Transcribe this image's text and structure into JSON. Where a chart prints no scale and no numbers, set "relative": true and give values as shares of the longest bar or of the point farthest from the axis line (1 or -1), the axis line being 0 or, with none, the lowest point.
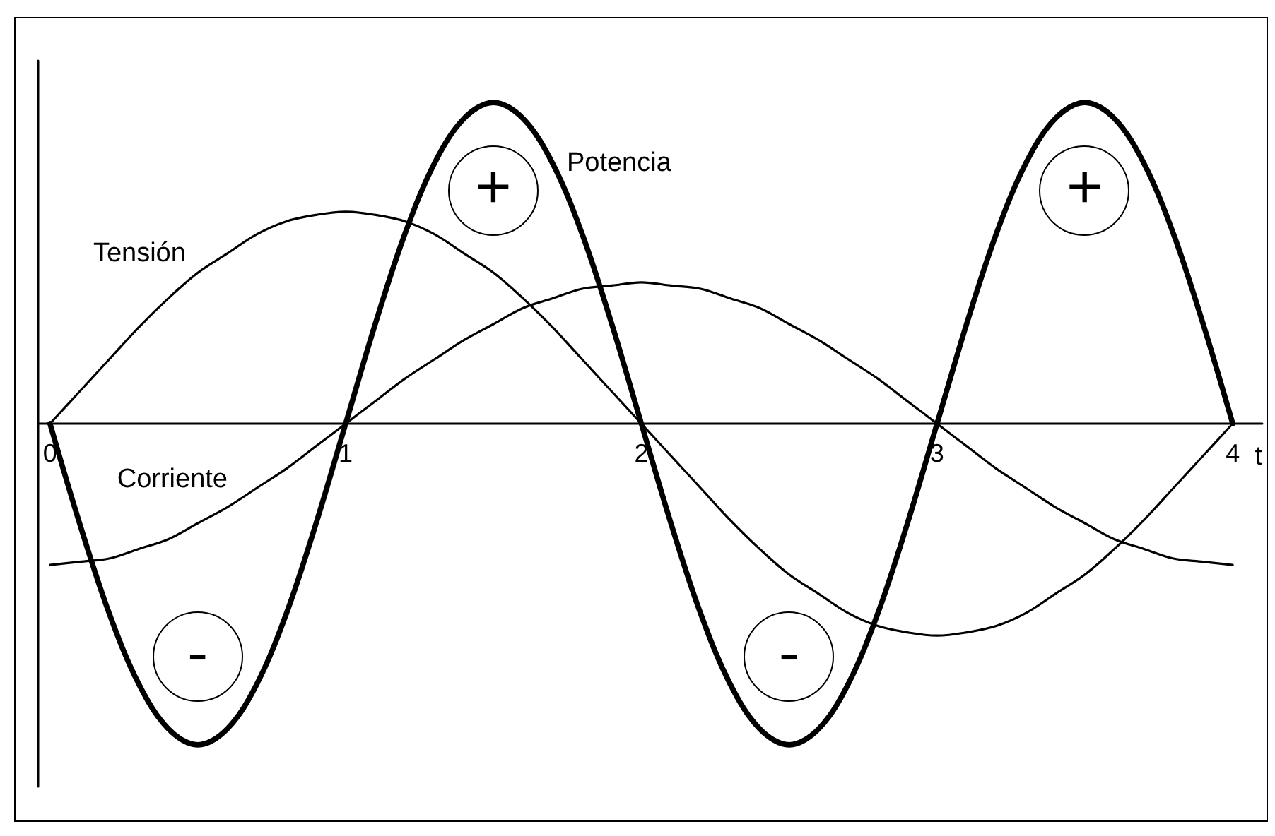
{
  "chart_data": {
    "type": "line",
    "relative": true,
    "xlabel": "t",
    "x": [
      0,
      0.1,
      0.2,
      0.3,
      0.4,
      0.5,
      0.6,
      0.7,
      0.8,
      0.9,
      1,
      1.1,
      1.2,
      1.3,
      1.4,
      1.5,
      1.6,
      1.7,
      1.8,
      1.9,
      2,
      2.1,
      2.2,
      2.3,
      2.4,
      2.5,
      2.6,
      2.7,
      2.8,
      2.9,
      3,
      3.1,
      3.2,
      3.3,
      3.4,
      3.5,
      3.6,
      3.7,
      3.8,
      3.9,
      4
    ],
    "xlim": [
      -0.04,
      4.1
    ],
    "xticks": [
      0,
      1,
      2,
      3,
      4
    ],
    "series": [
      {
        "name": "Tensión",
        "color": "#000000",
        "values": [
          0,
          0.1,
          0.2,
          0.3,
          0.39,
          0.47,
          0.53,
          0.59,
          0.63,
          0.65,
          0.66,
          0.65,
          0.63,
          0.59,
          0.53,
          0.47,
          0.39,
          0.3,
          0.2,
          0.1,
          0,
          -0.1,
          -0.2,
          -0.3,
          -0.39,
          -0.47,
          -0.53,
          -0.59,
          -0.63,
          -0.65,
          -0.66,
          -0.65,
          -0.63,
          -0.59,
          -0.53,
          -0.47,
          -0.39,
          -0.3,
          -0.2,
          -0.1,
          0
        ]
      },
      {
        "name": "Corriente",
        "color": "#000000",
        "values": [
          -0.44,
          -0.43,
          -0.42,
          -0.39,
          -0.36,
          -0.31,
          -0.26,
          -0.2,
          -0.14,
          -0.07,
          0,
          0.07,
          0.14,
          0.2,
          0.26,
          0.31,
          0.36,
          0.39,
          0.42,
          0.43,
          0.44,
          0.43,
          0.42,
          0.39,
          0.36,
          0.31,
          0.26,
          0.2,
          0.14,
          0.07,
          0,
          -0.07,
          -0.14,
          -0.2,
          -0.26,
          -0.31,
          -0.36,
          -0.39,
          -0.42,
          -0.43,
          -0.44
        ]
      },
      {
        "name": "Potencia",
        "color": "#000000",
        "values": [
          0,
          -0.31,
          -0.59,
          -0.81,
          -0.95,
          -1,
          -0.95,
          -0.81,
          -0.59,
          -0.31,
          0,
          0.31,
          0.59,
          0.81,
          0.95,
          1,
          0.95,
          0.81,
          0.59,
          0.31,
          0,
          -0.31,
          -0.59,
          -0.81,
          -0.95,
          -1,
          -0.95,
          -0.81,
          -0.59,
          -0.31,
          0,
          0.31,
          0.59,
          0.81,
          0.95,
          1,
          0.95,
          0.81,
          0.59,
          0.31,
          0
        ]
      }
    ],
    "annotations": [
      {
        "text": "-",
        "x": 0.5,
        "y": -1
      },
      {
        "text": "+",
        "x": 1.5,
        "y": 1
      },
      {
        "text": "-",
        "x": 2.5,
        "y": -1
      },
      {
        "text": "+",
        "x": 3.5,
        "y": 1
      }
    ],
    "legend": false,
    "grid": false,
    "marker": "none",
    "line_style": "solid"
  }
}
